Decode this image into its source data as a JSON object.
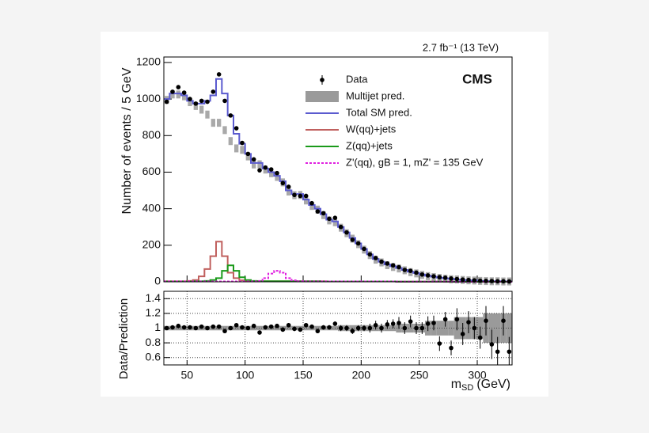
{
  "chart_data": {
    "type": "histogram",
    "lumi": "2.7 fb⁻¹ (13 TeV)",
    "label": "CMS",
    "y_label": "Number of events / 5 GeV",
    "ratio_label": "Data/Prediction",
    "x_label": [
      "m",
      "SD",
      "(GeV)"
    ],
    "bins": [
      30,
      35,
      40,
      45,
      50,
      55,
      60,
      65,
      70,
      75,
      80,
      85,
      90,
      95,
      100,
      105,
      110,
      115,
      120,
      125,
      130,
      135,
      140,
      145,
      150,
      155,
      160,
      165,
      170,
      175,
      180,
      185,
      190,
      195,
      200,
      205,
      210,
      215,
      220,
      225,
      230,
      235,
      240,
      245,
      250,
      255,
      260,
      265,
      270,
      275,
      280,
      285,
      290,
      295,
      300,
      305,
      310,
      315,
      320,
      325,
      330
    ],
    "xlim": [
      30,
      330
    ],
    "xticks": [
      50,
      100,
      150,
      200,
      250,
      300
    ],
    "ylim": [
      0,
      1230
    ],
    "yticks": [
      0,
      200,
      400,
      600,
      800,
      1000,
      1200
    ],
    "ratio_ylim": [
      0.5,
      1.5
    ],
    "ratio_yticks": [
      0.6,
      0.8,
      1,
      1.2,
      1.4
    ],
    "ratio_grid": true,
    "series": [
      {
        "name": "Data",
        "color": "#000000",
        "drawstyle": "points",
        "values": [
          985,
          1040,
          1065,
          1035,
          1000,
          975,
          990,
          985,
          1040,
          1135,
          990,
          910,
          840,
          760,
          700,
          670,
          610,
          625,
          615,
          595,
          540,
          520,
          475,
          470,
          470,
          430,
          385,
          375,
          345,
          350,
          300,
          270,
          230,
          210,
          180,
          150,
          130,
          110,
          100,
          90,
          80,
          65,
          60,
          50,
          40,
          35,
          30,
          25,
          22,
          18,
          15,
          12,
          10,
          8,
          6,
          5,
          4,
          3,
          3,
          2
        ]
      },
      {
        "name": "Multijet pred.",
        "color": "#9a9a9a",
        "drawstyle": "band",
        "values": [
          995,
          1025,
          1025,
          1015,
          983,
          962,
          942,
          915,
          870,
          870,
          830,
          770,
          730,
          722,
          686,
          642,
          643,
          614,
          594,
          574,
          544,
          494,
          474,
          475,
          445,
          415,
          395,
          365,
          336,
          326,
          296,
          266,
          236,
          206,
          176,
          146,
          121,
          106,
          91,
          81,
          73,
          63,
          53,
          46,
          38,
          31,
          26,
          21,
          17,
          14,
          13,
          10,
          8,
          7,
          5,
          4,
          3,
          3,
          2,
          2
        ]
      },
      {
        "name": "Total SM pred.",
        "color": "#5b5bcf",
        "drawstyle": "step",
        "values": [
          1000,
          1030,
          1030,
          1020,
          990,
          975,
          975,
          990,
          1020,
          1110,
          1030,
          910,
          810,
          755,
          700,
          650,
          650,
          620,
          600,
          580,
          550,
          500,
          480,
          480,
          450,
          420,
          400,
          370,
          340,
          330,
          300,
          270,
          240,
          210,
          180,
          150,
          125,
          110,
          95,
          85,
          75,
          65,
          55,
          48,
          40,
          33,
          28,
          23,
          19,
          16,
          13,
          10,
          8,
          7,
          5,
          4,
          3,
          3,
          2,
          2
        ]
      },
      {
        "name": "W(qq)+jets",
        "color": "#c0605e",
        "drawstyle": "step",
        "values": [
          3,
          3,
          3,
          3,
          5,
          10,
          30,
          70,
          140,
          220,
          140,
          50,
          20,
          8,
          4,
          3,
          3,
          3,
          3,
          3,
          3,
          3,
          3,
          3,
          3,
          3,
          3,
          3,
          2,
          2,
          2,
          2,
          2,
          2,
          2,
          2,
          2,
          2,
          2,
          2,
          1,
          1,
          1,
          1,
          1,
          1,
          1,
          1,
          1,
          1,
          0,
          0,
          0,
          0,
          0,
          0,
          0,
          0,
          0,
          0
        ]
      },
      {
        "name": "Z(qq)+jets",
        "color": "#1a9a1a",
        "drawstyle": "step",
        "values": [
          2,
          2,
          2,
          2,
          2,
          3,
          3,
          5,
          10,
          20,
          60,
          90,
          60,
          25,
          10,
          5,
          4,
          3,
          3,
          3,
          3,
          3,
          3,
          3,
          3,
          3,
          3,
          2,
          2,
          2,
          2,
          2,
          2,
          2,
          2,
          2,
          2,
          2,
          2,
          2,
          1,
          1,
          1,
          1,
          1,
          1,
          1,
          1,
          1,
          1,
          0,
          0,
          0,
          0,
          0,
          0,
          0,
          0,
          0,
          0
        ]
      },
      {
        "name": "Z'(qq), gB = 1, mZ' = 135 GeV",
        "color": "#e020e0",
        "drawstyle": "dashed-step",
        "values": [
          2,
          2,
          2,
          2,
          2,
          2,
          2,
          2,
          2,
          2,
          2,
          2,
          2,
          2,
          2,
          2,
          5,
          20,
          45,
          60,
          50,
          20,
          8,
          3,
          2,
          2,
          2,
          2,
          2,
          2,
          2,
          2,
          2,
          2,
          2,
          2,
          2,
          2,
          2,
          2,
          1,
          1,
          1,
          1,
          1,
          1,
          1,
          1,
          1,
          1,
          0,
          0,
          0,
          0,
          0,
          0,
          0,
          0,
          0,
          0
        ]
      }
    ],
    "ratio": {
      "color": "#000000",
      "band_color": "#9a9a9a",
      "values": [
        1.0,
        1.01,
        1.03,
        1.01,
        1.01,
        1.0,
        1.02,
        1.0,
        1.02,
        1.02,
        0.96,
        1.0,
        1.04,
        1.01,
        1.0,
        1.03,
        0.94,
        1.01,
        1.02,
        1.03,
        0.98,
        1.04,
        0.99,
        0.98,
        1.04,
        1.02,
        0.96,
        1.01,
        1.01,
        1.06,
        1.0,
        1.0,
        0.96,
        1.0,
        1.0,
        1.0,
        1.04,
        1.0,
        1.05,
        1.06,
        1.07,
        1.0,
        1.09,
        1.0,
        1.0,
        1.06,
        1.07,
        0.79,
        1.12,
        0.73,
        1.12,
        0.92,
        1.08,
        1.0,
        0.87,
        1.1,
        0.78,
        0.68,
        1.1,
        0.68
      ],
      "errors": [
        0.02,
        0.02,
        0.02,
        0.02,
        0.02,
        0.02,
        0.02,
        0.02,
        0.02,
        0.02,
        0.02,
        0.02,
        0.02,
        0.02,
        0.02,
        0.02,
        0.02,
        0.02,
        0.02,
        0.02,
        0.03,
        0.03,
        0.03,
        0.03,
        0.03,
        0.03,
        0.03,
        0.03,
        0.03,
        0.03,
        0.04,
        0.04,
        0.04,
        0.04,
        0.04,
        0.06,
        0.06,
        0.06,
        0.06,
        0.06,
        0.08,
        0.08,
        0.08,
        0.08,
        0.08,
        0.1,
        0.1,
        0.1,
        0.1,
        0.1,
        0.15,
        0.15,
        0.15,
        0.15,
        0.15,
        0.2,
        0.2,
        0.2,
        0.2,
        0.2
      ],
      "uncertainty": [
        0.03,
        0.03,
        0.03,
        0.03,
        0.03,
        0.03,
        0.03,
        0.03,
        0.03,
        0.03,
        0.03,
        0.03,
        0.03,
        0.03,
        0.03,
        0.03,
        0.03,
        0.03,
        0.03,
        0.03,
        0.03,
        0.03,
        0.03,
        0.03,
        0.03,
        0.03,
        0.03,
        0.03,
        0.03,
        0.03,
        0.04,
        0.04,
        0.04,
        0.04,
        0.04,
        0.04,
        0.04,
        0.04,
        0.04,
        0.04,
        0.06,
        0.06,
        0.06,
        0.06,
        0.06,
        0.1,
        0.1,
        0.1,
        0.1,
        0.1,
        0.15,
        0.15,
        0.15,
        0.15,
        0.15,
        0.2,
        0.2,
        0.2,
        0.2,
        0.2
      ]
    }
  }
}
